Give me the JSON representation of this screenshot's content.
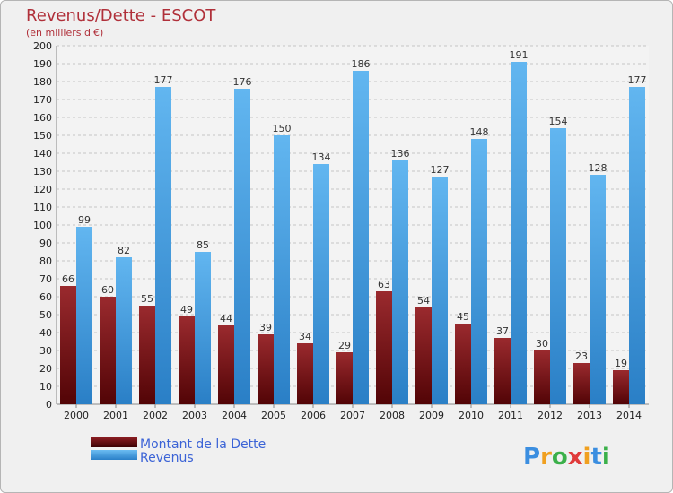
{
  "chart_data": {
    "type": "bar",
    "title": "Revenus/Dette - ESCOT",
    "subtitle": "(en milliers d'€)",
    "categories": [
      "2000",
      "2001",
      "2002",
      "2003",
      "2004",
      "2005",
      "2006",
      "2007",
      "2008",
      "2009",
      "2010",
      "2011",
      "2012",
      "2013",
      "2014"
    ],
    "series": [
      {
        "name": "Montant de la Dette",
        "color": "#7a1418",
        "values": [
          66,
          60,
          55,
          49,
          44,
          39,
          34,
          29,
          63,
          54,
          45,
          37,
          30,
          23,
          19
        ]
      },
      {
        "name": "Revenus",
        "color": "#4aa3e6",
        "values": [
          99,
          82,
          177,
          85,
          176,
          150,
          134,
          186,
          136,
          127,
          148,
          191,
          154,
          128,
          177
        ]
      }
    ],
    "ylim": [
      0,
      200
    ],
    "ytick_step": 10,
    "grid": true,
    "legend_position": "bottom-left",
    "xlabel": "",
    "ylabel": ""
  },
  "brand": {
    "letters": [
      "P",
      "r",
      "o",
      "x",
      "i",
      "t",
      "i"
    ],
    "colors": [
      "#3b8ee0",
      "#f0a020",
      "#3bb04a",
      "#e03a3a",
      "#f0a020",
      "#3b8ee0",
      "#3bb04a"
    ]
  }
}
